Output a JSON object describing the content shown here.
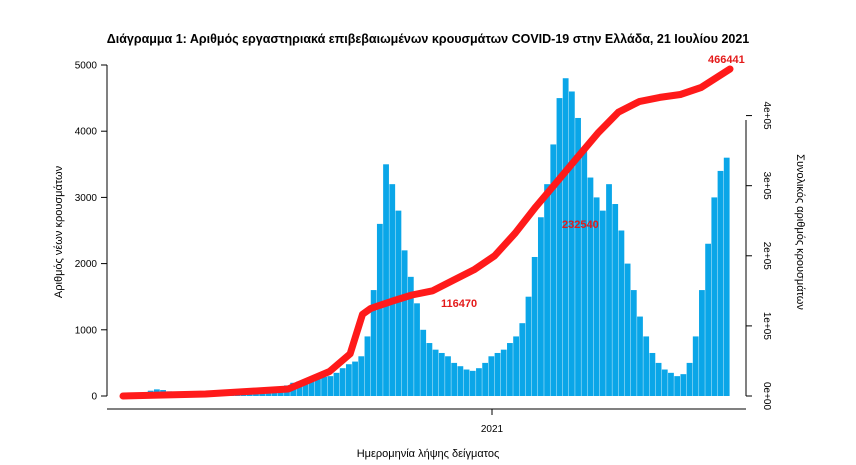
{
  "chart_data": {
    "type": "bar",
    "title": "Διάγραμμα 1: Αριθμός εργαστηριακά επιβεβαιωμένων κρουσμάτων COVID-19 στην Ελλάδα, 21 Ιουλίου 2021",
    "xlabel": "Ημερομηνία λήψης δείγματος",
    "ylabel": "Αριθμός νέων κρουσμάτων",
    "y2label": "Συνολικός αριθμός κρουσμάτων",
    "x_tick_labels": [
      "2021"
    ],
    "ylim": [
      0,
      5000
    ],
    "y_ticks": [
      0,
      1000,
      2000,
      3000,
      4000,
      5000
    ],
    "y2lim": [
      0,
      466441
    ],
    "y2_ticks": [
      "0e+00",
      "1e+05",
      "2e+05",
      "3e+05",
      "4e+05"
    ],
    "grid": false,
    "colors": {
      "bars": "#0aa6e8",
      "cumulative": "#ff1a1a"
    },
    "series": [
      {
        "name": "",
        "kind": "bar",
        "period": "2020-02-26 to 2021-07-21 (weekly points)",
        "values": [
          2,
          5,
          15,
          40,
          80,
          100,
          90,
          70,
          50,
          30,
          20,
          15,
          12,
          15,
          18,
          22,
          25,
          30,
          35,
          40,
          45,
          40,
          35,
          45,
          60,
          110,
          160,
          200,
          220,
          250,
          280,
          300,
          290,
          300,
          350,
          420,
          480,
          520,
          600,
          900,
          1600,
          2600,
          3500,
          3200,
          2800,
          2200,
          1800,
          1400,
          1000,
          800,
          700,
          650,
          600,
          500,
          450,
          400,
          380,
          420,
          500,
          600,
          650,
          700,
          800,
          900,
          1100,
          1500,
          2100,
          2700,
          3200,
          3800,
          4500,
          4800,
          4600,
          4200,
          3700,
          3300,
          3000,
          2800,
          3200,
          2900,
          2500,
          2000,
          1600,
          1200,
          900,
          650,
          500,
          400,
          350,
          300,
          330,
          500,
          900,
          1600,
          2300,
          3000,
          3400,
          3600
        ]
      },
      {
        "name": "",
        "kind": "line",
        "axis": "right",
        "points": [
          [
            0,
            0
          ],
          [
            20,
            2800
          ],
          [
            40,
            10000
          ],
          [
            50,
            35000
          ],
          [
            55,
            60000
          ],
          [
            58,
            116470
          ],
          [
            60,
            125000
          ],
          [
            65,
            135000
          ],
          [
            70,
            144000
          ],
          [
            75,
            150000
          ],
          [
            80,
            165000
          ],
          [
            85,
            180000
          ],
          [
            90,
            200000
          ],
          [
            95,
            232540
          ],
          [
            100,
            270000
          ],
          [
            105,
            305000
          ],
          [
            110,
            340000
          ],
          [
            115,
            375000
          ],
          [
            120,
            405000
          ],
          [
            125,
            420000
          ],
          [
            130,
            426000
          ],
          [
            135,
            430000
          ],
          [
            140,
            440000
          ],
          [
            147,
            466441
          ]
        ]
      }
    ],
    "annotations": [
      "116470",
      "232540",
      "466441"
    ]
  }
}
